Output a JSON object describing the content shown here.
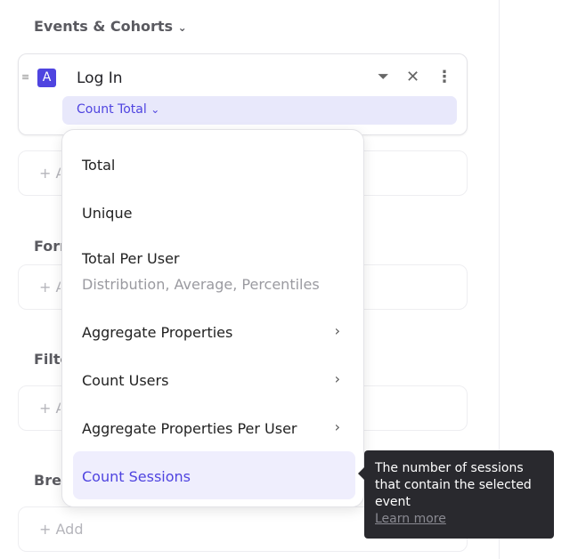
{
  "sections": {
    "events": "Events & Cohorts",
    "formula": "Formula",
    "filter": "Filter",
    "breakdown": "Breakdown"
  },
  "add_label": "Add",
  "event": {
    "badge": "A",
    "name": "Log In",
    "measure": "Count Total"
  },
  "menu": {
    "items": [
      {
        "label": "Total"
      },
      {
        "label": "Unique"
      },
      {
        "label": "Total Per User",
        "sublabel": "Distribution, Average, Percentiles"
      },
      {
        "label": "Aggregate Properties",
        "submenu": true
      },
      {
        "label": "Count Users",
        "submenu": true
      },
      {
        "label": "Aggregate Properties Per User",
        "submenu": true
      },
      {
        "label": "Count Sessions",
        "selected": true
      }
    ]
  },
  "tooltip": {
    "text": "The number of sessions that contain the selected event",
    "link": "Learn more"
  },
  "colors": {
    "accent": "#4f44e0",
    "highlight": "#efeefd",
    "tooltip_bg": "#29292e"
  }
}
